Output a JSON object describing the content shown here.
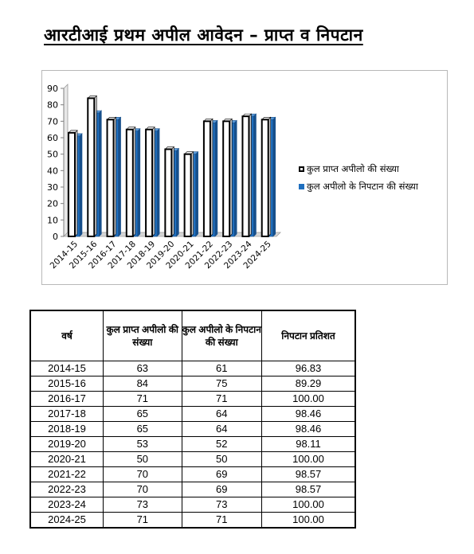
{
  "title": "आरटीआई प्रथम अपील आवेदन – प्राप्त व निपटान",
  "chart_data": {
    "type": "bar",
    "categories": [
      "2014-15",
      "2015-16",
      "2016-17",
      "2017-18",
      "2018-19",
      "2019-20",
      "2020-21",
      "2021-22",
      "2022-23",
      "2023-24",
      "2024-25"
    ],
    "series": [
      {
        "name": "कुल प्राप्त अपीलो की संख्या",
        "values": [
          63,
          84,
          71,
          65,
          65,
          53,
          50,
          70,
          70,
          73,
          71
        ],
        "color": "#ffffff"
      },
      {
        "name": "कुल अपीलो के निपटान की संख्या",
        "values": [
          61,
          75,
          71,
          64,
          64,
          52,
          50,
          69,
          69,
          73,
          71
        ],
        "color": "#1f6fbf"
      }
    ],
    "yticks": [
      0,
      10,
      20,
      30,
      40,
      50,
      60,
      70,
      80,
      90
    ],
    "ylim": [
      0,
      90
    ],
    "legend_position": "right",
    "grid": false,
    "style": "3d"
  },
  "table": {
    "headers": [
      "वर्ष",
      "कुल प्राप्त अपीलो की संख्या",
      "कुल अपीलो के निपटान की संख्या",
      "निपटान प्रतिशत"
    ],
    "rows": [
      [
        "2014-15",
        "63",
        "61",
        "96.83"
      ],
      [
        "2015-16",
        "84",
        "75",
        "89.29"
      ],
      [
        "2016-17",
        "71",
        "71",
        "100.00"
      ],
      [
        "2017-18",
        "65",
        "64",
        "98.46"
      ],
      [
        "2018-19",
        "65",
        "64",
        "98.46"
      ],
      [
        "2019-20",
        "53",
        "52",
        "98.11"
      ],
      [
        "2020-21",
        "50",
        "50",
        "100.00"
      ],
      [
        "2021-22",
        "70",
        "69",
        "98.57"
      ],
      [
        "2022-23",
        "70",
        "69",
        "98.57"
      ],
      [
        "2023-24",
        "73",
        "73",
        "100.00"
      ],
      [
        "2024-25",
        "71",
        "71",
        "100.00"
      ]
    ]
  }
}
